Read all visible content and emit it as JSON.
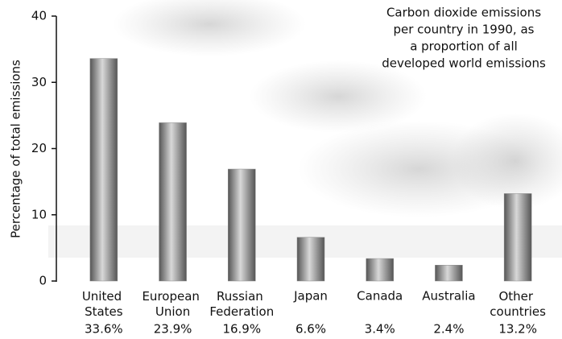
{
  "chart_data": {
    "type": "bar",
    "title": [
      "Carbon dioxide emissions",
      "per country in 1990, as",
      "a proportion of all",
      "developed world emissions"
    ],
    "y_label": "Percentage of total emissions",
    "categories": [
      "United States",
      "European Union",
      "Russian Federation",
      "Japan",
      "Canada",
      "Australia",
      "Other countries"
    ],
    "values": [
      33.6,
      23.9,
      16.9,
      6.6,
      3.4,
      2.4,
      13.2
    ],
    "value_labels": [
      "33.6%",
      "23.9%",
      "16.9%",
      "6.6%",
      "3.4%",
      "2.4%",
      "13.2%"
    ],
    "color": "#8a8a8a",
    "ylim": [
      0,
      40
    ],
    "yticks": [
      0,
      10,
      20,
      30,
      40
    ]
  }
}
